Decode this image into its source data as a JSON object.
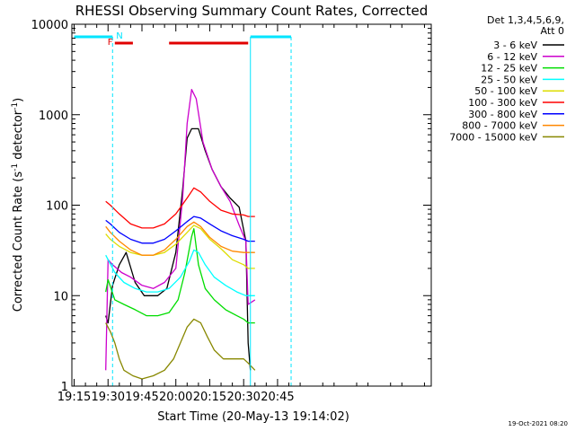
{
  "chart_data": {
    "type": "line",
    "title": "RHESSI Observing Summary Count Rates, Corrected",
    "xlabel": "Start Time (20-May-13 19:14:02)",
    "ylabel_main": "Corrected Count Rate (s",
    "ylabel_sup": "-1",
    "ylabel_mid": " detector",
    "ylabel_sup2": "-1",
    "ylabel_end": ")",
    "yscale": "log",
    "ylim": [
      1,
      10000
    ],
    "xlim_minutes": [
      1154,
      1313
    ],
    "x_ticks": [
      {
        "m": 1155,
        "label": "19:15"
      },
      {
        "m": 1170,
        "label": "19:30"
      },
      {
        "m": 1185,
        "label": "19:45"
      },
      {
        "m": 1200,
        "label": "20:00"
      },
      {
        "m": 1215,
        "label": "20:15"
      },
      {
        "m": 1230,
        "label": "20:30"
      },
      {
        "m": 1245,
        "label": "20:45"
      }
    ],
    "y_ticks": [
      {
        "v": 1,
        "label": "1"
      },
      {
        "v": 10,
        "label": "10"
      },
      {
        "v": 100,
        "label": "100"
      },
      {
        "v": 1000,
        "label": "1000"
      },
      {
        "v": 10000,
        "label": "10000"
      }
    ],
    "legend_header": [
      "Det 1,3,4,5,6,9,",
      "Att 0"
    ],
    "legend_position": "right",
    "series": [
      {
        "name": "3 - 6 keV",
        "color": "#000000",
        "points": [
          [
            1169,
            6
          ],
          [
            1170,
            5
          ],
          [
            1172,
            13
          ],
          [
            1175,
            22
          ],
          [
            1178,
            30
          ],
          [
            1182,
            14
          ],
          [
            1186,
            10
          ],
          [
            1192,
            10
          ],
          [
            1196,
            12
          ],
          [
            1200,
            30
          ],
          [
            1203,
            150
          ],
          [
            1205,
            550
          ],
          [
            1207,
            700
          ],
          [
            1210,
            700
          ],
          [
            1213,
            400
          ],
          [
            1216,
            250
          ],
          [
            1220,
            160
          ],
          [
            1224,
            120
          ],
          [
            1228,
            95
          ],
          [
            1231,
            40
          ],
          [
            1232,
            3
          ],
          [
            1233,
            1.5
          ]
        ]
      },
      {
        "name": "6 - 12 keV",
        "color": "#cc00cc",
        "points": [
          [
            1169,
            1.5
          ],
          [
            1170,
            25
          ],
          [
            1172,
            22
          ],
          [
            1176,
            18
          ],
          [
            1180,
            16
          ],
          [
            1185,
            13
          ],
          [
            1190,
            12
          ],
          [
            1195,
            14
          ],
          [
            1200,
            20
          ],
          [
            1203,
            120
          ],
          [
            1205,
            800
          ],
          [
            1207,
            1900
          ],
          [
            1209,
            1500
          ],
          [
            1212,
            500
          ],
          [
            1216,
            250
          ],
          [
            1220,
            160
          ],
          [
            1224,
            110
          ],
          [
            1228,
            60
          ],
          [
            1231,
            40
          ],
          [
            1232,
            8
          ],
          [
            1235,
            9
          ]
        ]
      },
      {
        "name": "12 - 25 keV",
        "color": "#00dd00",
        "points": [
          [
            1169,
            11
          ],
          [
            1170,
            15
          ],
          [
            1173,
            9
          ],
          [
            1177,
            8
          ],
          [
            1182,
            7
          ],
          [
            1187,
            6
          ],
          [
            1192,
            6
          ],
          [
            1197,
            6.5
          ],
          [
            1201,
            9
          ],
          [
            1204,
            18
          ],
          [
            1207,
            45
          ],
          [
            1208,
            55
          ],
          [
            1210,
            22
          ],
          [
            1213,
            12
          ],
          [
            1217,
            9
          ],
          [
            1222,
            7
          ],
          [
            1227,
            6
          ],
          [
            1230,
            5.5
          ],
          [
            1232,
            5
          ],
          [
            1235,
            5
          ]
        ]
      },
      {
        "name": "25 - 50 keV",
        "color": "#00ffff",
        "points": [
          [
            1169,
            28
          ],
          [
            1170,
            25
          ],
          [
            1173,
            18
          ],
          [
            1177,
            14
          ],
          [
            1182,
            12
          ],
          [
            1187,
            11
          ],
          [
            1192,
            11
          ],
          [
            1197,
            12
          ],
          [
            1202,
            16
          ],
          [
            1206,
            24
          ],
          [
            1208,
            32
          ],
          [
            1210,
            30
          ],
          [
            1213,
            22
          ],
          [
            1217,
            16
          ],
          [
            1222,
            13
          ],
          [
            1227,
            11
          ],
          [
            1231,
            10
          ],
          [
            1235,
            10
          ]
        ]
      },
      {
        "name": "50 - 100 keV",
        "color": "#dddd00",
        "points": [
          [
            1169,
            48
          ],
          [
            1171,
            42
          ],
          [
            1175,
            35
          ],
          [
            1180,
            30
          ],
          [
            1185,
            28
          ],
          [
            1190,
            28
          ],
          [
            1195,
            30
          ],
          [
            1200,
            37
          ],
          [
            1205,
            50
          ],
          [
            1208,
            60
          ],
          [
            1211,
            55
          ],
          [
            1215,
            42
          ],
          [
            1220,
            33
          ],
          [
            1225,
            25
          ],
          [
            1230,
            22
          ],
          [
            1232,
            20
          ],
          [
            1235,
            20
          ]
        ]
      },
      {
        "name": "100 - 300 keV",
        "color": "#ff0000",
        "points": [
          [
            1169,
            110
          ],
          [
            1171,
            100
          ],
          [
            1175,
            80
          ],
          [
            1180,
            62
          ],
          [
            1185,
            56
          ],
          [
            1190,
            56
          ],
          [
            1195,
            62
          ],
          [
            1200,
            80
          ],
          [
            1205,
            120
          ],
          [
            1208,
            155
          ],
          [
            1211,
            140
          ],
          [
            1215,
            110
          ],
          [
            1220,
            88
          ],
          [
            1225,
            80
          ],
          [
            1230,
            78
          ],
          [
            1232,
            75
          ],
          [
            1235,
            75
          ]
        ]
      },
      {
        "name": "300 - 800 keV",
        "color": "#0000ff",
        "points": [
          [
            1169,
            68
          ],
          [
            1171,
            62
          ],
          [
            1175,
            50
          ],
          [
            1180,
            42
          ],
          [
            1185,
            38
          ],
          [
            1190,
            38
          ],
          [
            1195,
            42
          ],
          [
            1200,
            52
          ],
          [
            1205,
            66
          ],
          [
            1208,
            75
          ],
          [
            1211,
            72
          ],
          [
            1215,
            62
          ],
          [
            1220,
            52
          ],
          [
            1225,
            46
          ],
          [
            1230,
            42
          ],
          [
            1232,
            40
          ],
          [
            1235,
            40
          ]
        ]
      },
      {
        "name": "800 - 7000 keV",
        "color": "#ff8800",
        "points": [
          [
            1169,
            58
          ],
          [
            1171,
            50
          ],
          [
            1175,
            40
          ],
          [
            1180,
            32
          ],
          [
            1185,
            28
          ],
          [
            1190,
            28
          ],
          [
            1195,
            32
          ],
          [
            1200,
            42
          ],
          [
            1205,
            58
          ],
          [
            1208,
            65
          ],
          [
            1211,
            58
          ],
          [
            1215,
            44
          ],
          [
            1220,
            35
          ],
          [
            1225,
            31
          ],
          [
            1230,
            30
          ],
          [
            1232,
            30
          ],
          [
            1235,
            30
          ]
        ]
      },
      {
        "name": "7000 - 15000 keV",
        "color": "#888800",
        "points": [
          [
            1169,
            5
          ],
          [
            1171,
            4
          ],
          [
            1173,
            3
          ],
          [
            1175,
            2
          ],
          [
            1177,
            1.5
          ],
          [
            1181,
            1.3
          ],
          [
            1185,
            1.2
          ],
          [
            1190,
            1.3
          ],
          [
            1195,
            1.5
          ],
          [
            1199,
            2
          ],
          [
            1202,
            3
          ],
          [
            1205,
            4.5
          ],
          [
            1208,
            5.5
          ],
          [
            1211,
            5
          ],
          [
            1214,
            3.5
          ],
          [
            1217,
            2.5
          ],
          [
            1221,
            2
          ],
          [
            1226,
            2
          ],
          [
            1230,
            2
          ],
          [
            1232,
            1.8
          ],
          [
            1235,
            1.5
          ]
        ]
      }
    ],
    "annotations": {
      "night_label": "N",
      "flare_label": "F",
      "night_color": "#00e5ff",
      "flare_color": "#e00000",
      "night_segments_minutes": [
        [
          1155,
          1172
        ],
        [
          1233,
          1251
        ]
      ],
      "flare_segments_minutes": [
        [
          1173,
          1181
        ],
        [
          1197,
          1232
        ]
      ],
      "boundary_lines_minutes": [
        1172,
        1233,
        1251
      ]
    },
    "footer_date": "19-Oct-2021 08:20"
  }
}
